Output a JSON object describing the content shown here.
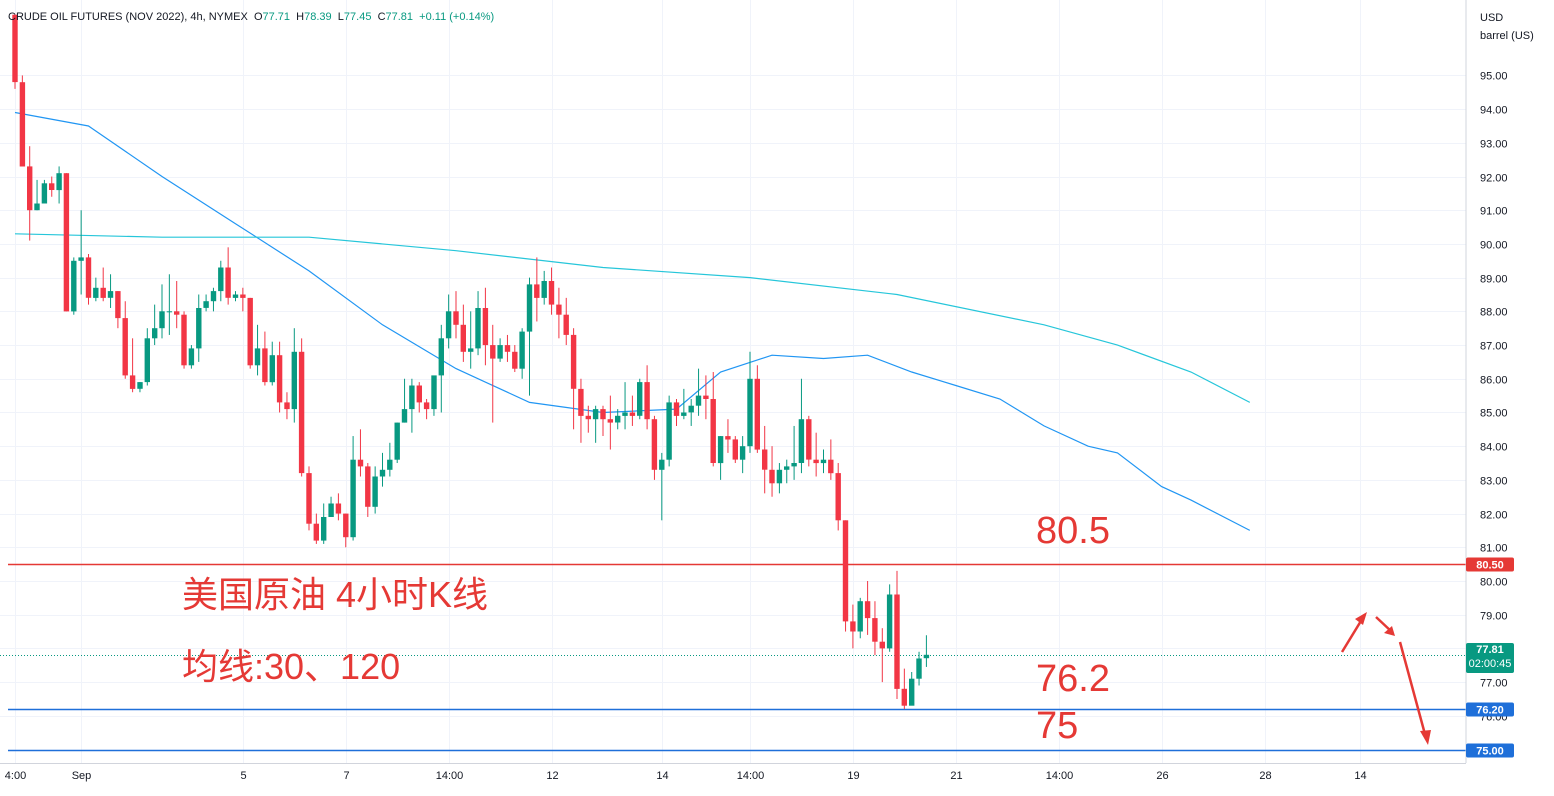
{
  "legend": {
    "symbol": "CRUDE OIL FUTURES (NOV 2022), 4h, NYMEX",
    "open_label": "O",
    "open": "77.71",
    "high_label": "H",
    "high": "78.39",
    "low_label": "L",
    "low": "77.45",
    "close_label": "C",
    "close": "77.81",
    "change": "+0.11 (+0.14%)"
  },
  "currency": "USD",
  "unit": "barrel (US)",
  "last_price_tag": "77.81",
  "countdown": "02:00:45",
  "annotations": {
    "title": "美国原油 4小时K线",
    "ma_label": "均线:30、120",
    "level_a": "80.5",
    "level_b": "76.2",
    "level_c": "75"
  },
  "colors": {
    "up": "#089981",
    "down": "#f23645",
    "ma30": "#2196f3",
    "ma120": "#26c6da",
    "resistance": "#e53935",
    "support": "#1e6fd9"
  },
  "chart_data": {
    "type": "candlestick",
    "timeframe": "4h",
    "y_range": [
      74.6,
      97.0
    ],
    "y_ticks": [
      "95.00",
      "94.00",
      "93.00",
      "92.00",
      "91.00",
      "90.00",
      "89.00",
      "88.00",
      "87.00",
      "86.00",
      "85.00",
      "84.00",
      "83.00",
      "82.00",
      "81.00",
      "80.00",
      "79.00",
      "78.00",
      "77.00",
      "76.00"
    ],
    "x_ticks": [
      {
        "label": "4:00",
        "i": 0
      },
      {
        "label": "Sep",
        "i": 9
      },
      {
        "label": "5",
        "i": 31
      },
      {
        "label": "7",
        "i": 45
      },
      {
        "label": "14:00",
        "i": 59
      },
      {
        "label": "12",
        "i": 73
      },
      {
        "label": "14",
        "i": 88
      },
      {
        "label": "14:00",
        "i": 100
      },
      {
        "label": "19",
        "i": 114
      },
      {
        "label": "21",
        "i": 128
      },
      {
        "label": "14:00",
        "i": 142
      },
      {
        "label": "26",
        "i": 156
      },
      {
        "label": "28",
        "i": 170
      },
      {
        "label": "14",
        "i": 183
      }
    ],
    "candles": [
      [
        96.8,
        96.8,
        94.8,
        94.6
      ],
      [
        94.8,
        95.0,
        92.3,
        92.3
      ],
      [
        92.3,
        92.9,
        91.0,
        90.1
      ],
      [
        91.0,
        91.9,
        91.2,
        91.0
      ],
      [
        91.2,
        91.9,
        91.8,
        91.2
      ],
      [
        91.8,
        92.0,
        91.6,
        91.4
      ],
      [
        91.6,
        92.3,
        92.1,
        91.2
      ],
      [
        92.1,
        92.1,
        88.0,
        88.0
      ],
      [
        88.0,
        89.6,
        89.5,
        87.9
      ],
      [
        89.5,
        91.0,
        89.6,
        88.5
      ],
      [
        89.6,
        89.7,
        88.4,
        88.2
      ],
      [
        88.4,
        89.0,
        88.7,
        88.3
      ],
      [
        88.7,
        89.3,
        88.4,
        88.3
      ],
      [
        88.4,
        89.1,
        88.6,
        88.1
      ],
      [
        88.6,
        88.6,
        87.8,
        87.5
      ],
      [
        87.8,
        88.3,
        86.1,
        86.0
      ],
      [
        86.1,
        87.2,
        85.7,
        85.6
      ],
      [
        85.7,
        85.9,
        85.9,
        85.6
      ],
      [
        85.9,
        87.5,
        87.2,
        85.8
      ],
      [
        87.2,
        88.2,
        87.5,
        87.0
      ],
      [
        87.5,
        88.8,
        88.0,
        87.2
      ],
      [
        88.0,
        89.1,
        88.0,
        87.3
      ],
      [
        88.0,
        88.9,
        87.9,
        87.5
      ],
      [
        87.9,
        88.0,
        86.4,
        86.3
      ],
      [
        86.4,
        87.0,
        86.9,
        86.3
      ],
      [
        86.9,
        88.5,
        88.1,
        86.5
      ],
      [
        88.1,
        88.5,
        88.3,
        88.0
      ],
      [
        88.3,
        88.7,
        88.6,
        88.0
      ],
      [
        88.6,
        89.5,
        89.3,
        88.3
      ],
      [
        89.3,
        89.9,
        88.4,
        88.2
      ],
      [
        88.4,
        88.6,
        88.5,
        88.3
      ],
      [
        88.5,
        88.7,
        88.4,
        88.0
      ],
      [
        88.4,
        88.4,
        86.4,
        86.3
      ],
      [
        86.4,
        87.6,
        86.9,
        86.1
      ],
      [
        86.9,
        87.4,
        85.9,
        85.8
      ],
      [
        85.9,
        87.1,
        86.7,
        85.8
      ],
      [
        86.7,
        87.1,
        85.3,
        85.0
      ],
      [
        85.3,
        85.6,
        85.1,
        84.8
      ],
      [
        85.1,
        87.5,
        86.8,
        84.7
      ],
      [
        86.8,
        87.2,
        83.2,
        83.1
      ],
      [
        83.2,
        83.4,
        81.7,
        81.5
      ],
      [
        81.7,
        82.0,
        81.2,
        81.1
      ],
      [
        81.2,
        82.3,
        81.9,
        81.1
      ],
      [
        81.9,
        82.5,
        82.3,
        81.9
      ],
      [
        82.3,
        82.6,
        82.0,
        81.8
      ],
      [
        82.0,
        82.0,
        81.3,
        81.0
      ],
      [
        81.3,
        84.3,
        83.6,
        81.2
      ],
      [
        83.6,
        84.5,
        83.4,
        83.1
      ],
      [
        83.4,
        83.5,
        82.2,
        81.9
      ],
      [
        82.2,
        83.4,
        83.1,
        82.0
      ],
      [
        83.1,
        83.8,
        83.3,
        82.8
      ],
      [
        83.3,
        84.1,
        83.6,
        83.1
      ],
      [
        83.6,
        84.7,
        84.7,
        83.5
      ],
      [
        84.7,
        86.0,
        85.1,
        84.7
      ],
      [
        85.1,
        86.0,
        85.8,
        84.4
      ],
      [
        85.8,
        85.9,
        85.3,
        85.0
      ],
      [
        85.3,
        85.4,
        85.1,
        84.8
      ],
      [
        85.1,
        85.5,
        86.1,
        84.9
      ],
      [
        86.1,
        87.6,
        87.2,
        85.0
      ],
      [
        87.2,
        88.5,
        88.0,
        86.9
      ],
      [
        88.0,
        88.6,
        87.6,
        87.2
      ],
      [
        87.6,
        88.2,
        86.8,
        86.5
      ],
      [
        86.8,
        88.0,
        86.9,
        86.3
      ],
      [
        86.9,
        88.6,
        88.1,
        86.7
      ],
      [
        88.1,
        88.7,
        87.0,
        86.4
      ],
      [
        87.0,
        87.6,
        86.6,
        84.7
      ],
      [
        86.6,
        87.2,
        87.0,
        86.5
      ],
      [
        87.0,
        87.3,
        86.8,
        86.5
      ],
      [
        86.8,
        87.0,
        86.3,
        86.2
      ],
      [
        86.3,
        87.5,
        87.4,
        86.0
      ],
      [
        87.4,
        89.0,
        88.8,
        85.5
      ],
      [
        88.8,
        89.6,
        88.4,
        87.7
      ],
      [
        88.4,
        89.2,
        88.9,
        88.2
      ],
      [
        88.9,
        89.3,
        88.2,
        87.9
      ],
      [
        88.2,
        88.7,
        87.9,
        87.2
      ],
      [
        87.9,
        88.4,
        87.3,
        87.0
      ],
      [
        87.3,
        87.5,
        85.7,
        84.5
      ],
      [
        85.7,
        86.0,
        84.9,
        84.1
      ],
      [
        84.9,
        85.2,
        84.8,
        84.4
      ],
      [
        84.8,
        85.2,
        85.1,
        84.1
      ],
      [
        85.1,
        85.2,
        84.8,
        84.3
      ],
      [
        84.8,
        85.5,
        84.7,
        83.9
      ],
      [
        84.7,
        85.1,
        84.9,
        84.5
      ],
      [
        84.9,
        85.9,
        85.0,
        84.5
      ],
      [
        85.0,
        85.5,
        84.9,
        84.6
      ],
      [
        84.9,
        86.0,
        85.9,
        84.8
      ],
      [
        85.9,
        86.4,
        84.8,
        84.5
      ],
      [
        84.8,
        84.9,
        83.3,
        83.0
      ],
      [
        83.3,
        83.8,
        83.6,
        81.8
      ],
      [
        83.6,
        85.5,
        85.3,
        83.4
      ],
      [
        85.3,
        85.4,
        84.9,
        84.6
      ],
      [
        84.9,
        85.7,
        85.0,
        84.8
      ],
      [
        85.0,
        85.4,
        85.2,
        84.6
      ],
      [
        85.2,
        86.3,
        85.5,
        84.9
      ],
      [
        85.5,
        86.1,
        85.4,
        84.8
      ],
      [
        85.4,
        86.2,
        83.5,
        83.4
      ],
      [
        83.5,
        84.3,
        84.3,
        83.0
      ],
      [
        84.3,
        84.8,
        84.2,
        83.8
      ],
      [
        84.2,
        84.3,
        83.6,
        83.5
      ],
      [
        83.6,
        84.3,
        84.0,
        83.2
      ],
      [
        84.0,
        86.8,
        86.0,
        83.8
      ],
      [
        86.0,
        86.4,
        83.9,
        83.8
      ],
      [
        83.9,
        84.6,
        83.3,
        82.6
      ],
      [
        83.3,
        84.0,
        82.9,
        82.5
      ],
      [
        82.9,
        83.5,
        83.3,
        82.6
      ],
      [
        83.3,
        83.6,
        83.4,
        82.9
      ],
      [
        83.4,
        84.6,
        83.5,
        83.0
      ],
      [
        83.5,
        86.0,
        84.8,
        83.2
      ],
      [
        84.8,
        84.9,
        83.6,
        83.4
      ],
      [
        83.6,
        84.4,
        83.5,
        83.1
      ],
      [
        83.5,
        83.9,
        83.6,
        83.2
      ],
      [
        83.6,
        84.2,
        83.2,
        83.0
      ],
      [
        83.2,
        83.5,
        81.8,
        81.5
      ],
      [
        81.8,
        81.8,
        78.8,
        78.5
      ],
      [
        78.8,
        79.3,
        78.5,
        78.0
      ],
      [
        78.5,
        79.5,
        79.4,
        78.3
      ],
      [
        79.4,
        80.0,
        78.9,
        78.4
      ],
      [
        78.9,
        79.4,
        78.2,
        77.8
      ],
      [
        78.2,
        78.6,
        78.0,
        77.0
      ],
      [
        78.0,
        79.9,
        79.6,
        77.9
      ],
      [
        79.6,
        80.3,
        76.8,
        76.5
      ],
      [
        76.8,
        77.4,
        76.3,
        76.2
      ],
      [
        76.3,
        77.3,
        77.1,
        76.4
      ],
      [
        77.1,
        77.9,
        77.7,
        76.9
      ],
      [
        77.71,
        78.39,
        77.81,
        77.45
      ]
    ],
    "series": [
      {
        "name": "MA30",
        "points": [
          [
            0,
            93.9
          ],
          [
            10,
            93.5
          ],
          [
            20,
            92.0
          ],
          [
            30,
            90.6
          ],
          [
            40,
            89.2
          ],
          [
            50,
            87.6
          ],
          [
            60,
            86.3
          ],
          [
            70,
            85.3
          ],
          [
            80,
            85.0
          ],
          [
            90,
            85.1
          ],
          [
            96,
            86.2
          ],
          [
            103,
            86.7
          ],
          [
            110,
            86.6
          ],
          [
            116,
            86.7
          ],
          [
            122,
            86.2
          ],
          [
            128,
            85.8
          ],
          [
            134,
            85.4
          ],
          [
            140,
            84.6
          ],
          [
            146,
            84.0
          ],
          [
            150,
            83.8
          ],
          [
            156,
            82.8
          ],
          [
            160,
            82.4
          ],
          [
            168,
            81.5
          ]
        ]
      },
      {
        "name": "MA120",
        "points": [
          [
            0,
            90.3
          ],
          [
            20,
            90.2
          ],
          [
            40,
            90.2
          ],
          [
            60,
            89.8
          ],
          [
            80,
            89.3
          ],
          [
            100,
            89.0
          ],
          [
            120,
            88.5
          ],
          [
            140,
            87.6
          ],
          [
            150,
            87.0
          ],
          [
            160,
            86.2
          ],
          [
            168,
            85.3
          ]
        ]
      }
    ],
    "levels": [
      {
        "price": 80.5,
        "label": "80.50",
        "color": "#e53935"
      },
      {
        "price": 76.2,
        "label": "76.20",
        "color": "#1e6fd9"
      },
      {
        "price": 75.0,
        "label": "75.00",
        "color": "#1e6fd9"
      }
    ]
  }
}
